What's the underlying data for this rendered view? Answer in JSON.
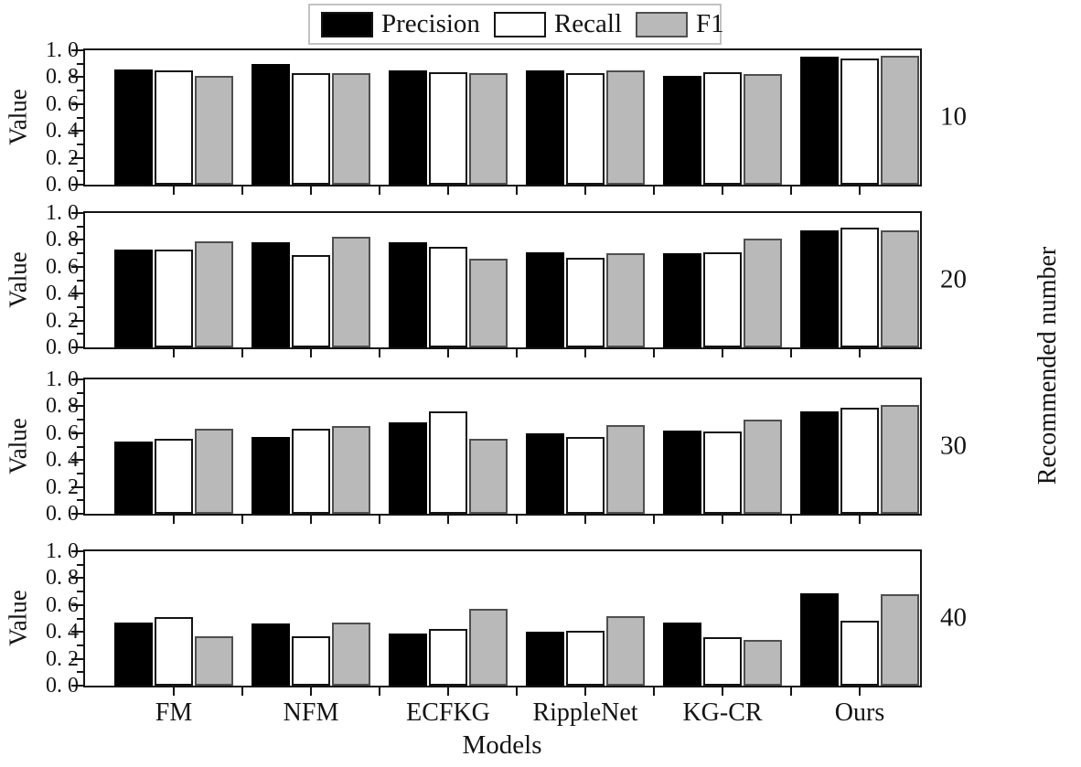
{
  "chart_data": {
    "type": "bar",
    "title": "",
    "xlabel": "Models",
    "ylabel": "Value",
    "right_axis_label": "Recommended number",
    "grid": false,
    "legend_position": "top-center",
    "ylim": [
      0.0,
      1.0
    ],
    "ytick_labels": [
      "1. 0",
      "0. 8",
      "0. 6",
      "0. 4",
      "0. 2",
      "0. 0"
    ],
    "ytick_values": [
      1.0,
      0.8,
      0.6,
      0.4,
      0.2,
      0.0
    ],
    "categories": [
      "FM",
      "NFM",
      "ECFKG",
      "RippleNet",
      "KG-CR",
      "Ours"
    ],
    "legend": [
      {
        "name": "Precision",
        "color": "#000000",
        "border": "#141414"
      },
      {
        "name": "Recall",
        "color": "#ffffff",
        "border": "#141414"
      },
      {
        "name": "F1",
        "color": "#b9b9b9",
        "border": "#4f4f4f"
      }
    ],
    "panels": [
      {
        "recommended_number": "10",
        "series": [
          {
            "name": "Precision",
            "values": [
              0.86,
              0.9,
              0.85,
              0.85,
              0.81,
              0.95
            ]
          },
          {
            "name": "Recall",
            "values": [
              0.85,
              0.83,
              0.84,
              0.83,
              0.84,
              0.94
            ]
          },
          {
            "name": "F1",
            "values": [
              0.81,
              0.83,
              0.83,
              0.85,
              0.82,
              0.96
            ]
          }
        ]
      },
      {
        "recommended_number": "20",
        "series": [
          {
            "name": "Precision",
            "values": [
              0.73,
              0.78,
              0.78,
              0.71,
              0.7,
              0.87
            ]
          },
          {
            "name": "Recall",
            "values": [
              0.73,
              0.69,
              0.75,
              0.67,
              0.71,
              0.89
            ]
          },
          {
            "name": "F1",
            "values": [
              0.79,
              0.82,
              0.66,
              0.7,
              0.81,
              0.87
            ]
          }
        ]
      },
      {
        "recommended_number": "30",
        "series": [
          {
            "name": "Precision",
            "values": [
              0.54,
              0.57,
              0.68,
              0.6,
              0.62,
              0.76
            ]
          },
          {
            "name": "Recall",
            "values": [
              0.56,
              0.63,
              0.76,
              0.57,
              0.61,
              0.79
            ]
          },
          {
            "name": "F1",
            "values": [
              0.63,
              0.65,
              0.56,
              0.66,
              0.7,
              0.81
            ]
          }
        ]
      },
      {
        "recommended_number": "40",
        "series": [
          {
            "name": "Precision",
            "values": [
              0.47,
              0.46,
              0.39,
              0.4,
              0.47,
              0.69
            ]
          },
          {
            "name": "Recall",
            "values": [
              0.51,
              0.37,
              0.42,
              0.41,
              0.36,
              0.48
            ]
          },
          {
            "name": "F1",
            "values": [
              0.37,
              0.47,
              0.57,
              0.52,
              0.34,
              0.68
            ]
          }
        ]
      }
    ]
  }
}
